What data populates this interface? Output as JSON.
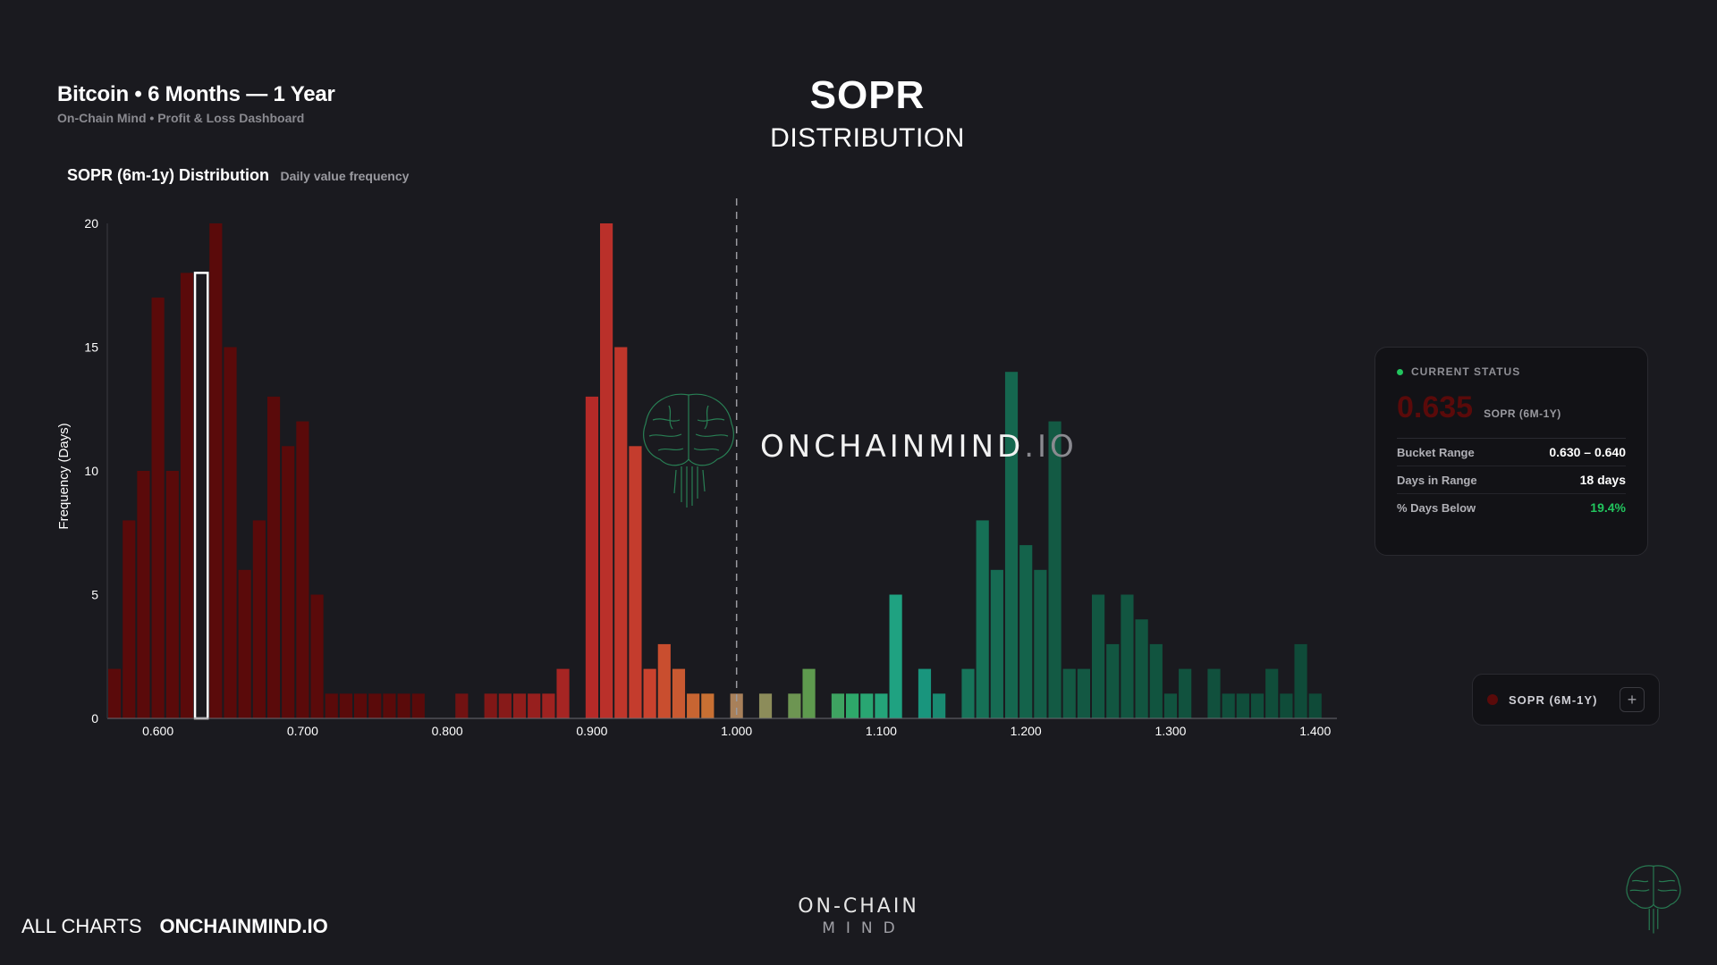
{
  "header": {
    "title": "Bitcoin • 6 Months — 1 Year",
    "subtitle": "On-Chain Mind • Profit & Loss Dashboard"
  },
  "page_title": {
    "main": "SOPR",
    "sub": "DISTRIBUTION"
  },
  "chart_heading": {
    "title": "SOPR (6m-1y) Distribution",
    "subtitle": "Daily value frequency"
  },
  "watermark": {
    "brand": "ONCHAINMIND",
    "suffix": ".IO"
  },
  "status_card": {
    "label": "CURRENT STATUS",
    "value": "0.635",
    "value_label": "SOPR (6M-1Y)",
    "value_color": "#5a0a0a",
    "rows": [
      {
        "key": "Bucket Range",
        "value": "0.630 – 0.640"
      },
      {
        "key": "Days in Range",
        "value": "18 days"
      },
      {
        "key": "% Days Below",
        "value": "19.4%"
      }
    ],
    "status_dot_color": "#22c55e"
  },
  "legend": {
    "name": "SOPR (6M-1Y)",
    "plus": "+"
  },
  "footer": {
    "all_charts": "ALL CHARTS",
    "site": "ONCHAINMIND.IO",
    "logo_line1": "ON-CHAIN",
    "logo_line2": "MIND"
  },
  "chart_data": {
    "type": "bar",
    "title": "SOPR (6m-1y) Distribution",
    "subtitle": "Daily value frequency",
    "xlabel": "",
    "ylabel": "Frequency (Days)",
    "xlim": [
      0.565,
      1.415
    ],
    "ylim": [
      0,
      20
    ],
    "bucket_width": 0.01,
    "x_ticks": [
      "0.600",
      "0.700",
      "0.800",
      "0.900",
      "1.000",
      "1.100",
      "1.200",
      "1.300",
      "1.400"
    ],
    "y_ticks": [
      "0",
      "5",
      "10",
      "15",
      "20"
    ],
    "reference_line_x": 1.0,
    "highlight_bucket": 0.63,
    "bins": [
      {
        "x": 0.57,
        "y": 2
      },
      {
        "x": 0.58,
        "y": 8
      },
      {
        "x": 0.59,
        "y": 10
      },
      {
        "x": 0.6,
        "y": 17
      },
      {
        "x": 0.61,
        "y": 10
      },
      {
        "x": 0.62,
        "y": 18
      },
      {
        "x": 0.63,
        "y": 18
      },
      {
        "x": 0.64,
        "y": 20
      },
      {
        "x": 0.65,
        "y": 15
      },
      {
        "x": 0.66,
        "y": 6
      },
      {
        "x": 0.67,
        "y": 8
      },
      {
        "x": 0.68,
        "y": 13
      },
      {
        "x": 0.69,
        "y": 11
      },
      {
        "x": 0.7,
        "y": 12
      },
      {
        "x": 0.71,
        "y": 5
      },
      {
        "x": 0.72,
        "y": 1
      },
      {
        "x": 0.73,
        "y": 1
      },
      {
        "x": 0.74,
        "y": 1
      },
      {
        "x": 0.75,
        "y": 1
      },
      {
        "x": 0.76,
        "y": 1
      },
      {
        "x": 0.77,
        "y": 1
      },
      {
        "x": 0.78,
        "y": 1
      },
      {
        "x": 0.81,
        "y": 1
      },
      {
        "x": 0.83,
        "y": 1
      },
      {
        "x": 0.84,
        "y": 1
      },
      {
        "x": 0.85,
        "y": 1
      },
      {
        "x": 0.86,
        "y": 1
      },
      {
        "x": 0.87,
        "y": 1
      },
      {
        "x": 0.88,
        "y": 2
      },
      {
        "x": 0.9,
        "y": 13
      },
      {
        "x": 0.91,
        "y": 20
      },
      {
        "x": 0.92,
        "y": 15
      },
      {
        "x": 0.93,
        "y": 11
      },
      {
        "x": 0.94,
        "y": 2
      },
      {
        "x": 0.95,
        "y": 3
      },
      {
        "x": 0.96,
        "y": 2
      },
      {
        "x": 0.97,
        "y": 1
      },
      {
        "x": 0.98,
        "y": 1
      },
      {
        "x": 1.0,
        "y": 1
      },
      {
        "x": 1.02,
        "y": 1
      },
      {
        "x": 1.04,
        "y": 1
      },
      {
        "x": 1.05,
        "y": 2
      },
      {
        "x": 1.07,
        "y": 1
      },
      {
        "x": 1.08,
        "y": 1
      },
      {
        "x": 1.09,
        "y": 1
      },
      {
        "x": 1.1,
        "y": 1
      },
      {
        "x": 1.11,
        "y": 5
      },
      {
        "x": 1.13,
        "y": 2
      },
      {
        "x": 1.14,
        "y": 1
      },
      {
        "x": 1.16,
        "y": 2
      },
      {
        "x": 1.17,
        "y": 8
      },
      {
        "x": 1.18,
        "y": 6
      },
      {
        "x": 1.19,
        "y": 14
      },
      {
        "x": 1.2,
        "y": 7
      },
      {
        "x": 1.21,
        "y": 6
      },
      {
        "x": 1.22,
        "y": 12
      },
      {
        "x": 1.23,
        "y": 2
      },
      {
        "x": 1.24,
        "y": 2
      },
      {
        "x": 1.25,
        "y": 5
      },
      {
        "x": 1.26,
        "y": 3
      },
      {
        "x": 1.27,
        "y": 5
      },
      {
        "x": 1.28,
        "y": 4
      },
      {
        "x": 1.29,
        "y": 3
      },
      {
        "x": 1.3,
        "y": 1
      },
      {
        "x": 1.31,
        "y": 2
      },
      {
        "x": 1.33,
        "y": 2
      },
      {
        "x": 1.34,
        "y": 1
      },
      {
        "x": 1.35,
        "y": 1
      },
      {
        "x": 1.36,
        "y": 1
      },
      {
        "x": 1.37,
        "y": 2
      },
      {
        "x": 1.38,
        "y": 1
      },
      {
        "x": 1.39,
        "y": 3
      },
      {
        "x": 1.4,
        "y": 1
      }
    ],
    "color_stops": [
      {
        "x": 0.78,
        "color": "#5a0a0a"
      },
      {
        "x": 0.9,
        "color": "#b52a28"
      },
      {
        "x": 0.94,
        "color": "#c9422e"
      },
      {
        "x": 0.98,
        "color": "#c87033"
      },
      {
        "x": 1.0,
        "color": "#a8805a"
      },
      {
        "x": 1.02,
        "color": "#8c8c5a"
      },
      {
        "x": 1.05,
        "color": "#5e9a4e"
      },
      {
        "x": 1.08,
        "color": "#2ea86a"
      },
      {
        "x": 1.12,
        "color": "#1aa088"
      },
      {
        "x": 1.16,
        "color": "#17745a"
      },
      {
        "x": 1.22,
        "color": "#135a44"
      },
      {
        "x": 1.4,
        "color": "#0f4a38"
      }
    ]
  }
}
